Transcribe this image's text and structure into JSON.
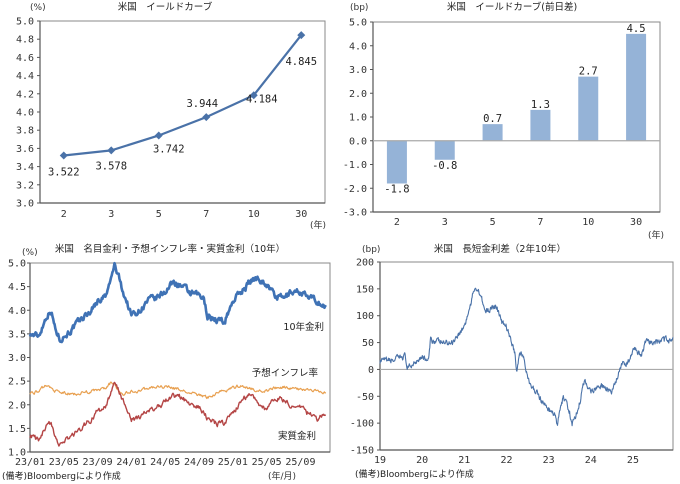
{
  "chart_data": [
    {
      "id": "yield-curve",
      "type": "line",
      "title": "米国　イールドカーブ",
      "ylabel": "(%)",
      "xlabel": "(年)",
      "categories": [
        "2",
        "3",
        "5",
        "7",
        "10",
        "30"
      ],
      "values": [
        3.522,
        3.578,
        3.742,
        3.944,
        4.184,
        4.845
      ],
      "data_labels": [
        "3.522",
        "3.578",
        "3.742",
        "3.944",
        "4.184",
        "4.845"
      ],
      "ylim": [
        3.0,
        5.0
      ],
      "yticks": [
        "3.0",
        "3.2",
        "3.4",
        "3.6",
        "3.8",
        "4.0",
        "4.2",
        "4.4",
        "4.6",
        "4.8",
        "5.0"
      ],
      "marker": "diamond",
      "color": "#4a72a8",
      "grid": false
    },
    {
      "id": "yield-curve-change",
      "type": "bar",
      "title": "米国　イールドカーブ(前日差)",
      "ylabel": "(bp)",
      "xlabel": "(年)",
      "categories": [
        "2",
        "3",
        "5",
        "7",
        "10",
        "30"
      ],
      "values": [
        -1.8,
        -0.8,
        0.7,
        1.3,
        2.7,
        4.5
      ],
      "data_labels": [
        "-1.8",
        "-0.8",
        "0.7",
        "1.3",
        "2.7",
        "4.5"
      ],
      "ylim": [
        -3.0,
        5.0
      ],
      "yticks": [
        "-3.0",
        "-2.0",
        "-1.0",
        "0.0",
        "1.0",
        "2.0",
        "3.0",
        "4.0",
        "5.0"
      ],
      "color": "#95b3d7",
      "grid": false
    },
    {
      "id": "nominal-inflation-real",
      "type": "line",
      "title": "米国　名目金利・予想インフレ率・実質金利（10年）",
      "ylabel": "(%)",
      "xlabel": "(年/月)",
      "ylim": [
        1.0,
        5.0
      ],
      "yticks": [
        "1.0",
        "1.5",
        "2.0",
        "2.5",
        "3.0",
        "3.5",
        "4.0",
        "4.5",
        "5.0"
      ],
      "xticks": [
        "23/01",
        "23/05",
        "23/09",
        "24/01",
        "24/05",
        "24/09",
        "25/01",
        "25/05",
        "25/09"
      ],
      "x_range": [
        "2023-01",
        "2025-11"
      ],
      "x_month_index_keypoints": [
        0,
        1,
        2,
        2.5,
        3,
        3.5,
        4,
        5,
        6,
        7,
        8,
        9,
        9.5,
        10,
        10.5,
        11,
        12,
        13,
        14,
        15,
        16,
        17,
        18,
        19,
        20,
        20.5,
        21,
        22,
        23,
        24,
        25,
        26,
        27,
        28,
        29,
        30,
        31,
        32,
        33,
        34,
        35
      ],
      "series": [
        {
          "name": "10年金利",
          "color": "#3f72b5",
          "values": [
            3.5,
            3.45,
            3.9,
            4.0,
            3.6,
            3.4,
            3.45,
            3.6,
            3.8,
            3.95,
            4.2,
            4.3,
            4.6,
            4.95,
            4.7,
            4.4,
            3.9,
            4.0,
            4.2,
            4.25,
            4.4,
            4.6,
            4.5,
            4.35,
            4.3,
            4.25,
            3.9,
            3.8,
            3.75,
            4.2,
            4.4,
            4.6,
            4.7,
            4.55,
            4.3,
            4.25,
            4.4,
            4.4,
            4.25,
            4.2,
            4.05
          ]
        },
        {
          "name": "予想インフレ率",
          "color": "#e8a050",
          "values": [
            2.25,
            2.28,
            2.42,
            2.35,
            2.3,
            2.25,
            2.25,
            2.22,
            2.25,
            2.28,
            2.3,
            2.35,
            2.45,
            2.45,
            2.3,
            2.22,
            2.28,
            2.3,
            2.35,
            2.38,
            2.38,
            2.35,
            2.3,
            2.25,
            2.2,
            2.18,
            2.15,
            2.25,
            2.3,
            2.35,
            2.42,
            2.35,
            2.3,
            2.3,
            2.35,
            2.38,
            2.35,
            2.32,
            2.3,
            2.28,
            2.28
          ]
        },
        {
          "name": "実質金利",
          "color": "#b44545",
          "values": [
            1.35,
            1.25,
            1.55,
            1.6,
            1.35,
            1.15,
            1.2,
            1.35,
            1.5,
            1.65,
            1.85,
            1.95,
            2.2,
            2.45,
            2.3,
            2.1,
            1.65,
            1.75,
            1.85,
            1.95,
            2.05,
            2.2,
            2.15,
            2.0,
            1.95,
            1.85,
            1.7,
            1.6,
            1.6,
            1.85,
            2.05,
            2.25,
            2.05,
            1.9,
            2.15,
            2.1,
            1.95,
            1.95,
            1.8,
            1.7,
            1.85
          ]
        }
      ],
      "legend": [
        {
          "label": "10年金利",
          "placement": "right-upper"
        },
        {
          "label": "予想インフレ率",
          "placement": "right-middle"
        },
        {
          "label": "実質金利",
          "placement": "right-lower"
        }
      ],
      "grid": false
    },
    {
      "id": "2s10s-spread",
      "type": "line",
      "title": "米国　長短金利差（2年10年）",
      "ylabel": "(bp)",
      "ylim": [
        -150,
        200
      ],
      "yticks": [
        "-150",
        "-100",
        "-50",
        "0",
        "50",
        "100",
        "150",
        "200"
      ],
      "xticks": [
        "19",
        "20",
        "21",
        "22",
        "23",
        "24",
        "25"
      ],
      "x_range": [
        2019.0,
        2025.95
      ],
      "x_keypoints": [
        2019.0,
        2019.3,
        2019.6,
        2019.65,
        2019.9,
        2020.0,
        2020.15,
        2020.2,
        2020.5,
        2020.7,
        2020.9,
        2021.0,
        2021.15,
        2021.25,
        2021.4,
        2021.5,
        2021.75,
        2021.9,
        2022.0,
        2022.2,
        2022.25,
        2022.3,
        2022.4,
        2022.55,
        2022.7,
        2022.85,
        2023.0,
        2023.15,
        2023.2,
        2023.35,
        2023.5,
        2023.55,
        2023.7,
        2023.85,
        2024.0,
        2024.2,
        2024.4,
        2024.5,
        2024.65,
        2024.75,
        2024.9,
        2025.05,
        2025.2,
        2025.3,
        2025.5,
        2025.7,
        2025.95
      ],
      "series": [
        {
          "name": "2年10年",
          "color": "#4a72a8",
          "values": [
            15,
            17,
            25,
            0,
            20,
            25,
            15,
            55,
            50,
            50,
            70,
            80,
            120,
            155,
            140,
            105,
            120,
            85,
            80,
            30,
            -5,
            30,
            25,
            -30,
            -40,
            -60,
            -75,
            -85,
            -105,
            -50,
            -80,
            -105,
            -75,
            -20,
            -40,
            -30,
            -35,
            -45,
            -10,
            10,
            15,
            40,
            25,
            50,
            50,
            55,
            57
          ]
        }
      ],
      "zero_line": true,
      "grid": false
    }
  ],
  "footnote": "(備考)Bloombergにより作成"
}
